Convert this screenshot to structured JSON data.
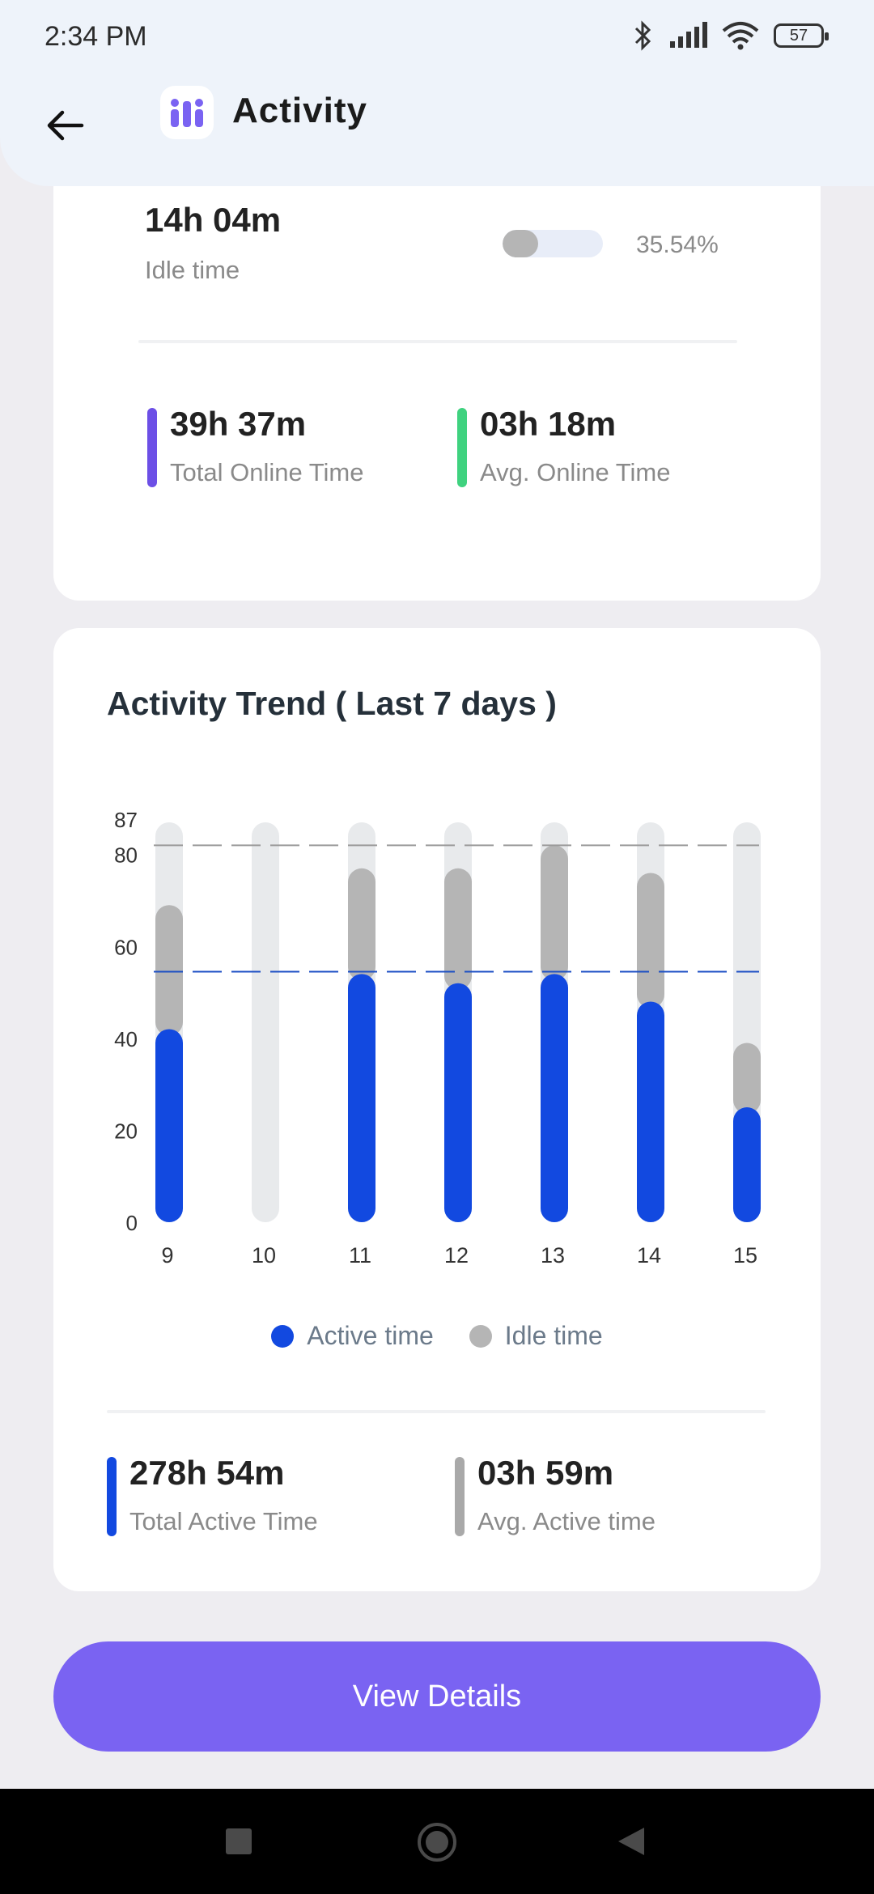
{
  "status": {
    "time": "2:34 PM",
    "battery": "57"
  },
  "header": {
    "title": "Activity"
  },
  "idle": {
    "value": "14h 04m",
    "label": "Idle time",
    "percent_text": "35.54%",
    "fraction": 0.3554
  },
  "online": {
    "total": {
      "value": "39h 37m",
      "label": "Total Online Time"
    },
    "avg": {
      "value": "03h 18m",
      "label": "Avg. Online Time"
    }
  },
  "colors": {
    "accent": "#7A63F2",
    "active": "#1249E0",
    "idle": "#B5B5B5",
    "track": "#E8EAEC",
    "online": "#6C4FE6",
    "avg_online": "#3FD27F"
  },
  "chart_data": {
    "type": "bar",
    "title": "Activity Trend ( Last 7 days )",
    "categories": [
      "9",
      "10",
      "11",
      "12",
      "13",
      "14",
      "15"
    ],
    "series": [
      {
        "name": "Active time",
        "values": [
          42,
          0,
          54,
          52,
          54,
          48,
          25
        ]
      },
      {
        "name": "Idle time",
        "values": [
          27,
          0,
          23,
          25,
          28,
          28,
          14
        ]
      }
    ],
    "ylim": [
      0,
      87
    ],
    "yticks": [
      0,
      20,
      40,
      60,
      80,
      87
    ],
    "reference_lines": [
      82,
      54.5
    ],
    "stacked": true,
    "legend": "bottom"
  },
  "active": {
    "total": {
      "value": "278h 54m",
      "label": "Total Active Time"
    },
    "avg": {
      "value": "03h 59m",
      "label": "Avg. Active time"
    }
  },
  "button": {
    "label": "View Details"
  }
}
